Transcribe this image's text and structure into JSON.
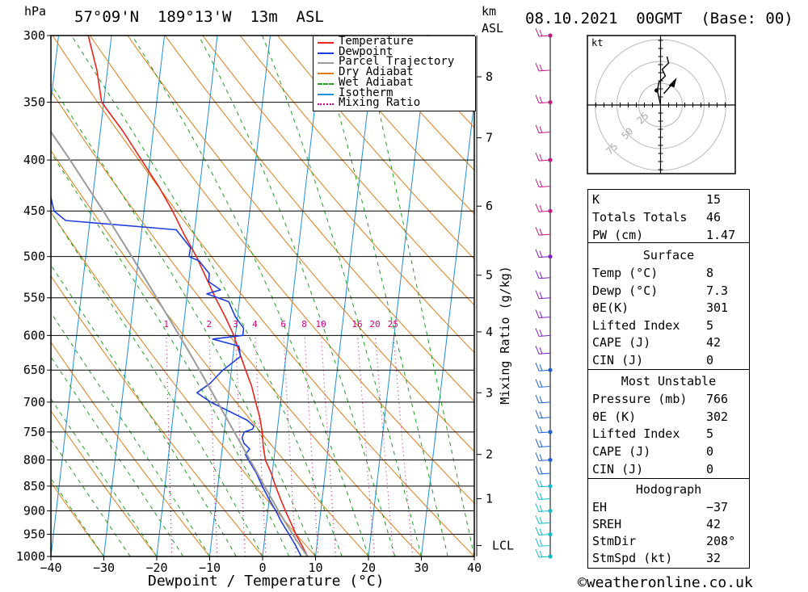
{
  "header": {
    "hpa_label": "hPa",
    "location": "57°09'N  189°13'W  13m  ASL",
    "km_label": "km",
    "asl_label": "ASL",
    "datetime": "08.10.2021  00GMT  (Base: 00)"
  },
  "chart_data": {
    "type": "line",
    "subtype": "skew-t log-p sounding",
    "xlabel": "Dewpoint / Temperature (°C)",
    "ylabel": "hPa",
    "y2label": "Mixing Ratio (g/kg)",
    "xlim": [
      -40,
      40
    ],
    "ylim": [
      1000,
      300
    ],
    "y_scale": "log",
    "x_ticks": [
      "−40",
      "−30",
      "−20",
      "−10",
      "0",
      "10",
      "20",
      "30",
      "40"
    ],
    "x_tick_values": [
      -40,
      -30,
      -20,
      -10,
      0,
      10,
      20,
      30,
      40
    ],
    "pressure_levels": [
      300,
      350,
      400,
      450,
      500,
      550,
      600,
      650,
      700,
      750,
      800,
      850,
      900,
      950,
      1000
    ],
    "km_ticks": [
      {
        "label": "8",
        "p": 330
      },
      {
        "label": "7",
        "p": 380
      },
      {
        "label": "6",
        "p": 445
      },
      {
        "label": "5",
        "p": 522
      },
      {
        "label": "4",
        "p": 595
      },
      {
        "label": "3",
        "p": 685
      },
      {
        "label": "2",
        "p": 790
      },
      {
        "label": "1",
        "p": 875
      },
      {
        "label": "LCL",
        "p": 975
      }
    ],
    "mixing_ratio_labels": [
      "1",
      "2",
      "3",
      "4",
      "6",
      "8",
      "10",
      "16",
      "20",
      "25"
    ],
    "mixing_ratio_values": [
      1,
      2,
      3,
      4,
      6,
      8,
      10,
      16,
      20,
      25
    ],
    "legend": {
      "placement": "top-right",
      "entries": [
        {
          "name": "Temperature",
          "color": "#e8241c",
          "style": "solid"
        },
        {
          "name": "Dewpoint",
          "color": "#1f3fdc",
          "style": "solid"
        },
        {
          "name": "Parcel Trajectory",
          "color": "#9b9b9b",
          "style": "solid"
        },
        {
          "name": "Dry Adiabat",
          "color": "#e07c18",
          "style": "solid"
        },
        {
          "name": "Wet Adiabat",
          "color": "#1ea01e",
          "style": "dashed"
        },
        {
          "name": "Isotherm",
          "color": "#1e8fd8",
          "style": "solid"
        },
        {
          "name": "Mixing Ratio",
          "color": "#d0007f",
          "style": "dotted"
        }
      ]
    },
    "series": [
      {
        "name": "Temperature",
        "color": "#e8241c",
        "points": [
          [
            1000,
            8.5
          ],
          [
            975,
            7.2
          ],
          [
            950,
            5.8
          ],
          [
            925,
            4.6
          ],
          [
            900,
            3.3
          ],
          [
            875,
            2.1
          ],
          [
            850,
            0.9
          ],
          [
            825,
            -0.2
          ],
          [
            800,
            -1.6
          ],
          [
            775,
            -2.3
          ],
          [
            750,
            -2.8
          ],
          [
            725,
            -3.6
          ],
          [
            700,
            -4.7
          ],
          [
            675,
            -5.8
          ],
          [
            650,
            -7.3
          ],
          [
            625,
            -8.8
          ],
          [
            600,
            -10.3
          ],
          [
            575,
            -12.3
          ],
          [
            550,
            -14.6
          ],
          [
            525,
            -16.8
          ],
          [
            500,
            -19.1
          ],
          [
            475,
            -21.9
          ],
          [
            450,
            -24.6
          ],
          [
            425,
            -27.8
          ],
          [
            400,
            -31.6
          ],
          [
            375,
            -35.6
          ],
          [
            350,
            -40.4
          ],
          [
            325,
            -42.0
          ],
          [
            300,
            -44.4
          ]
        ]
      },
      {
        "name": "Dewpoint",
        "color": "#1f3fdc",
        "points": [
          [
            1000,
            7.3
          ],
          [
            975,
            6.0
          ],
          [
            950,
            4.5
          ],
          [
            925,
            2.9
          ],
          [
            900,
            1.5
          ],
          [
            875,
            -0.1
          ],
          [
            850,
            -1.6
          ],
          [
            825,
            -3.0
          ],
          [
            800,
            -4.8
          ],
          [
            790,
            -5.5
          ],
          [
            780,
            -4.8
          ],
          [
            770,
            -6.0
          ],
          [
            760,
            -6.5
          ],
          [
            750,
            -6.2
          ],
          [
            745,
            -4.7
          ],
          [
            740,
            -4.5
          ],
          [
            730,
            -5.9
          ],
          [
            720,
            -8.3
          ],
          [
            700,
            -13.2
          ],
          [
            685,
            -16.0
          ],
          [
            670,
            -13.7
          ],
          [
            650,
            -11.6
          ],
          [
            630,
            -8.6
          ],
          [
            615,
            -9.1
          ],
          [
            605,
            -14.2
          ],
          [
            600,
            -8.6
          ],
          [
            590,
            -8.6
          ],
          [
            575,
            -10.4
          ],
          [
            555,
            -12.0
          ],
          [
            545,
            -16.3
          ],
          [
            540,
            -13.8
          ],
          [
            530,
            -16.2
          ],
          [
            520,
            -16.3
          ],
          [
            505,
            -18.5
          ],
          [
            500,
            -20.5
          ],
          [
            490,
            -20.4
          ],
          [
            470,
            -23.5
          ],
          [
            460,
            -44.6
          ],
          [
            450,
            -47.0
          ],
          [
            400,
            -50.4
          ],
          [
            350,
            -55.0
          ],
          [
            325,
            -57.5
          ],
          [
            300,
            -61.8
          ]
        ]
      },
      {
        "name": "Parcel Trajectory",
        "color": "#9b9b9b",
        "points": [
          [
            1000,
            8.5
          ],
          [
            975,
            6.8
          ],
          [
            950,
            5.2
          ],
          [
            925,
            3.6
          ],
          [
            900,
            2.0
          ],
          [
            850,
            -1.2
          ],
          [
            800,
            -4.5
          ],
          [
            750,
            -8.1
          ],
          [
            700,
            -11.9
          ],
          [
            650,
            -16.0
          ],
          [
            600,
            -20.6
          ],
          [
            550,
            -25.7
          ],
          [
            500,
            -31.3
          ],
          [
            450,
            -37.7
          ],
          [
            400,
            -45.1
          ],
          [
            350,
            -53.8
          ],
          [
            300,
            -63.8
          ]
        ]
      }
    ],
    "wind_barbs_pressures": [
      1000,
      975,
      950,
      925,
      900,
      875,
      850,
      825,
      800,
      775,
      750,
      725,
      700,
      675,
      650,
      625,
      600,
      575,
      550,
      525,
      500,
      475,
      450,
      425,
      400,
      375,
      350,
      325,
      300
    ],
    "hodograph": {
      "unit_label": "kt",
      "ring_labels": [
        "25",
        "50",
        "75"
      ],
      "ring_values": [
        25,
        50,
        75
      ]
    }
  },
  "indices": {
    "basic": [
      {
        "label": "K",
        "value": "15"
      },
      {
        "label": "Totals Totals",
        "value": "46"
      },
      {
        "label": "PW (cm)",
        "value": "1.47"
      }
    ],
    "surface_title": "Surface",
    "surface": [
      {
        "label": "Temp (°C)",
        "value": "8"
      },
      {
        "label": "Dewp (°C)",
        "value": "7.3"
      },
      {
        "label": "θE(K)",
        "value": "301"
      },
      {
        "label": "Lifted Index",
        "value": "5"
      },
      {
        "label": "CAPE (J)",
        "value": "42"
      },
      {
        "label": "CIN (J)",
        "value": "0"
      }
    ],
    "most_unstable_title": "Most Unstable",
    "most_unstable": [
      {
        "label": "Pressure (mb)",
        "value": "766"
      },
      {
        "label": "θE (K)",
        "value": "302"
      },
      {
        "label": "Lifted Index",
        "value": "5"
      },
      {
        "label": "CAPE (J)",
        "value": "0"
      },
      {
        "label": "CIN (J)",
        "value": "0"
      }
    ],
    "hodograph_title": "Hodograph",
    "hodograph": [
      {
        "label": "EH",
        "value": "−37"
      },
      {
        "label": "SREH",
        "value": "42"
      },
      {
        "label": "StmDir",
        "value": "208°"
      },
      {
        "label": "StmSpd (kt)",
        "value": "32"
      }
    ]
  },
  "footer": {
    "copyright_symbol": "©",
    "site": "weatheronline.co.uk"
  }
}
